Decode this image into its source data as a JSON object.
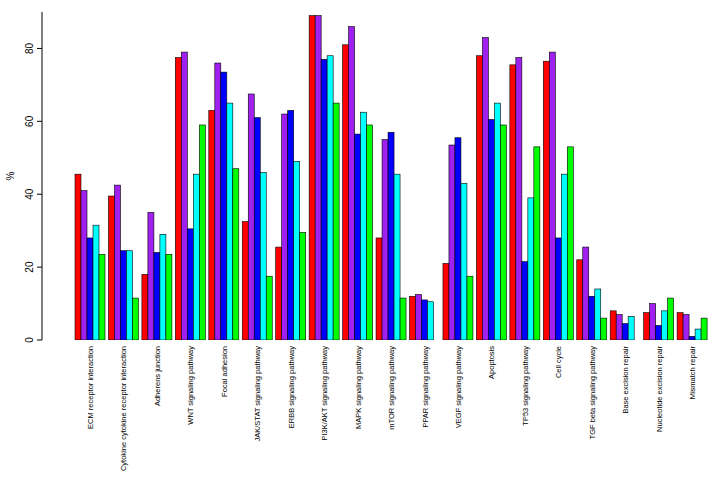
{
  "chart_data": {
    "type": "bar",
    "y_label": "%",
    "categories": [
      "ECM receptor interaction",
      "Cytokine cytokine receptor interaction",
      "Adherens junction",
      "WNT signaling pathway",
      "Focal adhesion",
      "JAK/STAT signaling pathway",
      "ERBB signaling pathway",
      "PI3K/AKT signaling pathway",
      "MAPK signaling pathway",
      "mTOR signaling pathway",
      "PPAR signaling pathway",
      "VEGF signaling pathway",
      "Apoptosis",
      "TP53 signaling pathway",
      "Cell cycle",
      "TGF beta signaling pathway",
      "Base excision repair",
      "Nucleotide excision repair",
      "Mismatch repair"
    ],
    "series": [
      {
        "color": "#ff0000",
        "values": [
          45.5,
          39.5,
          18,
          77.5,
          63,
          32.5,
          25.5,
          89,
          81,
          28,
          12,
          21,
          78,
          75.5,
          76.5,
          22,
          8,
          7.5,
          7.5
        ]
      },
      {
        "color": "#a020f0",
        "values": [
          41,
          42.5,
          35,
          79,
          76,
          67.5,
          62,
          89,
          86,
          55,
          12.5,
          53.5,
          83,
          77.5,
          79,
          25.5,
          7,
          10,
          7
        ]
      },
      {
        "color": "#0000ff",
        "values": [
          28,
          24.5,
          24,
          30.5,
          73.5,
          61,
          63,
          77,
          56.5,
          57,
          11,
          55.5,
          60.5,
          21.5,
          28,
          12,
          4.5,
          4,
          1
        ]
      },
      {
        "color": "#00ffff",
        "values": [
          31.5,
          24.5,
          29,
          45.5,
          65,
          46,
          49,
          78,
          62.5,
          45.5,
          10.5,
          43,
          65,
          39,
          45.5,
          14,
          6.5,
          8,
          3
        ]
      },
      {
        "color": "#00ff00",
        "values": [
          23.5,
          11.5,
          23.5,
          59,
          47,
          17.5,
          29.5,
          65,
          59,
          11.5,
          0,
          17.5,
          59,
          53,
          53,
          6,
          0,
          11.5,
          6
        ]
      }
    ],
    "ylim": [
      0,
      90
    ],
    "yticks": [
      0,
      20,
      40,
      60,
      80
    ],
    "grid": false
  }
}
